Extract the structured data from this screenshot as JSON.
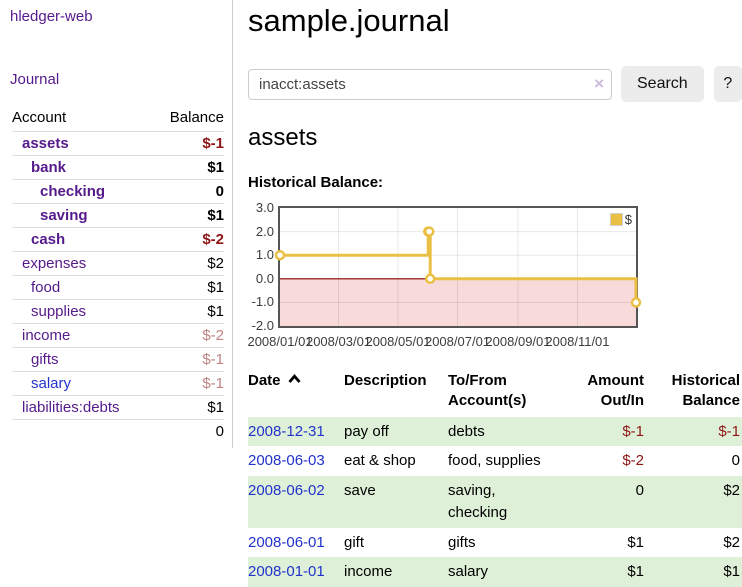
{
  "colors": {
    "link_purple": "#551a8b",
    "link_blue": "#2233cc",
    "negative_strong": "#8e1616",
    "negative_weak": "#c08383",
    "series_gold": "#e9c044",
    "row_stripe_green": "#dff0d8",
    "zero_line_red": "#8b0000",
    "negative_region_pink": "#f9dada",
    "button_gray": "#ececec"
  },
  "app": {
    "brand": "hledger-web",
    "nav_journal": "Journal"
  },
  "sidebar": {
    "accounts_header": {
      "account": "Account",
      "balance": "Balance"
    },
    "accounts": [
      {
        "name": "assets",
        "balance": "$-1",
        "indent": 0,
        "bold": true,
        "balance_class": "neg-strong",
        "link_class": "purple"
      },
      {
        "name": "bank",
        "balance": "$1",
        "indent": 1,
        "bold": true,
        "balance_class": "pos",
        "link_class": "purple"
      },
      {
        "name": "checking",
        "balance": "0",
        "indent": 2,
        "bold": true,
        "balance_class": "pos",
        "link_class": "purple"
      },
      {
        "name": "saving",
        "balance": "$1",
        "indent": 2,
        "bold": true,
        "balance_class": "pos",
        "link_class": "purple"
      },
      {
        "name": "cash",
        "balance": "$-2",
        "indent": 1,
        "bold": true,
        "balance_class": "neg-strong",
        "link_class": "purple"
      },
      {
        "name": "expenses",
        "balance": "$2",
        "indent": 0,
        "bold": false,
        "balance_class": "pos",
        "link_class": "purple"
      },
      {
        "name": "food",
        "balance": "$1",
        "indent": 1,
        "bold": false,
        "balance_class": "pos",
        "link_class": "purple"
      },
      {
        "name": "supplies",
        "balance": "$1",
        "indent": 1,
        "bold": false,
        "balance_class": "pos",
        "link_class": "purple"
      },
      {
        "name": "income",
        "balance": "$-2",
        "indent": 0,
        "bold": false,
        "balance_class": "neg-weak",
        "link_class": "purple"
      },
      {
        "name": "gifts",
        "balance": "$-1",
        "indent": 1,
        "bold": false,
        "balance_class": "neg-weak",
        "link_class": "purple"
      },
      {
        "name": "salary",
        "balance": "$-1",
        "indent": 1,
        "bold": false,
        "balance_class": "neg-weak",
        "link_class": "blue"
      },
      {
        "name": "liabilities:debts",
        "balance": "$1",
        "indent": 0,
        "bold": false,
        "balance_class": "pos",
        "link_class": "purple"
      }
    ],
    "total": "0"
  },
  "header": {
    "title": "sample.journal"
  },
  "search": {
    "value": "inacct:assets",
    "clear_label": "×",
    "search_button": "Search",
    "help_button": "?"
  },
  "account_page": {
    "heading": "assets",
    "chart_title": "Historical Balance:"
  },
  "chart_data": {
    "type": "line",
    "step": true,
    "title": "Historical Balance",
    "series": [
      {
        "name": "$",
        "color": "#e9c044",
        "points": [
          {
            "date": "2008-01-01",
            "value": 1
          },
          {
            "date": "2008-06-01",
            "value": 2
          },
          {
            "date": "2008-06-02",
            "value": 2
          },
          {
            "date": "2008-06-03",
            "value": 0
          },
          {
            "date": "2008-12-31",
            "value": -1
          }
        ]
      }
    ],
    "x_range": [
      "2008-01-01",
      "2008-12-31"
    ],
    "ylim": [
      -2,
      3
    ],
    "y_ticks": [
      3,
      2,
      1,
      0,
      -1,
      -2
    ],
    "x_ticks": [
      {
        "label": "2008/01/01",
        "date": "2008-01-01"
      },
      {
        "label": "2008/03/01",
        "date": "2008-03-01"
      },
      {
        "label": "2008/05/01",
        "date": "2008-05-01"
      },
      {
        "label": "2008/07/01",
        "date": "2008-07-01"
      },
      {
        "label": "2008/09/01",
        "date": "2008-09-01"
      },
      {
        "label": "2008/11/01",
        "date": "2008-11-01"
      }
    ],
    "grid": true,
    "legend": {
      "label": "$",
      "position": "top-right"
    }
  },
  "register": {
    "columns": [
      {
        "label": "Date",
        "sorted": "ascending"
      },
      {
        "label": "Description"
      },
      {
        "label": "To/From Account(s)"
      },
      {
        "label": "Amount Out/In"
      },
      {
        "label": "Historical Balance"
      }
    ],
    "rows": [
      {
        "date": "2008-12-31",
        "description": "pay off",
        "accounts": "debts",
        "amount": "$-1",
        "balance": "$-1",
        "amount_class": "neg",
        "balance_class": "neg",
        "stripe": true
      },
      {
        "date": "2008-06-03",
        "description": "eat & shop",
        "accounts": "food, supplies",
        "amount": "$-2",
        "balance": "0",
        "amount_class": "neg",
        "balance_class": "pos",
        "stripe": false
      },
      {
        "date": "2008-06-02",
        "description": "save",
        "accounts": "saving, checking",
        "amount": "0",
        "balance": "$2",
        "amount_class": "pos",
        "balance_class": "pos",
        "stripe": true
      },
      {
        "date": "2008-06-01",
        "description": "gift",
        "accounts": "gifts",
        "amount": "$1",
        "balance": "$2",
        "amount_class": "pos",
        "balance_class": "pos",
        "stripe": false
      },
      {
        "date": "2008-01-01",
        "description": "income",
        "accounts": "salary",
        "amount": "$1",
        "balance": "$1",
        "amount_class": "pos",
        "balance_class": "pos",
        "stripe": true
      }
    ]
  }
}
